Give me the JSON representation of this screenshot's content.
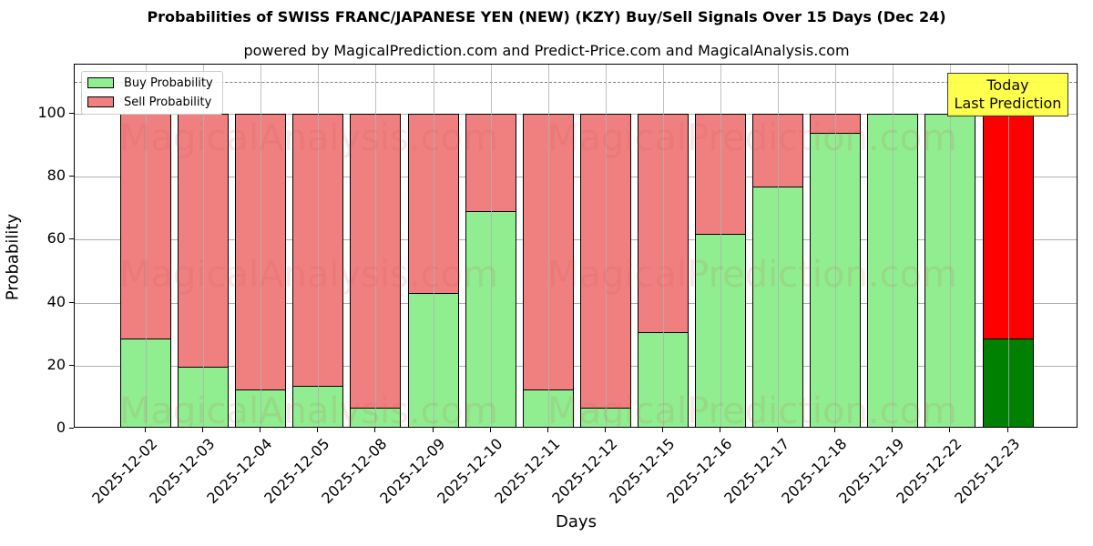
{
  "header": {
    "title": "Probabilities of SWISS FRANC/JAPANESE YEN (NEW) (KZY) Buy/Sell Signals Over 15 Days (Dec 24)",
    "subtitle": "powered by MagicalPrediction.com and Predict-Price.com and MagicalAnalysis.com"
  },
  "legend": {
    "buy_label": "Buy Probability",
    "sell_label": "Sell Probability"
  },
  "annotation": {
    "line1": "Today",
    "line2": "Last Prediction"
  },
  "watermarks": [
    "MagicalAnalysis.com",
    "MagicalPrediction.com"
  ],
  "colors": {
    "buy": "#90ee90",
    "sell": "#f08080",
    "buy_today": "#008000",
    "sell_today": "#ff0000",
    "annotation_bg": "#ffff44"
  },
  "chart_data": {
    "type": "bar",
    "stacked": true,
    "title": "Probabilities of SWISS FRANC/JAPANESE YEN (NEW) (KZY) Buy/Sell Signals Over 15 Days (Dec 24)",
    "subtitle": "powered by MagicalPrediction.com and Predict-Price.com and MagicalAnalysis.com",
    "xlabel": "Days",
    "ylabel": "Probability",
    "ylim": [
      0,
      115
    ],
    "yticks": [
      0,
      20,
      40,
      60,
      80,
      100
    ],
    "reference_line": 110,
    "grid": true,
    "legend_position": "upper left",
    "categories": [
      "2025-12-02",
      "2025-12-03",
      "2025-12-04",
      "2025-12-05",
      "2025-12-08",
      "2025-12-09",
      "2025-12-10",
      "2025-12-11",
      "2025-12-12",
      "2025-12-15",
      "2025-12-16",
      "2025-12-17",
      "2025-12-18",
      "2025-12-19",
      "2025-12-22",
      "2025-12-23"
    ],
    "series": [
      {
        "name": "Buy Probability",
        "values": [
          28.6,
          19.7,
          12.4,
          13.6,
          6.6,
          43.0,
          69.0,
          12.4,
          6.6,
          30.6,
          61.8,
          76.9,
          93.9,
          100,
          100,
          28.6
        ]
      },
      {
        "name": "Sell Probability",
        "values": [
          71.4,
          80.3,
          87.6,
          86.4,
          93.4,
          57.0,
          31.0,
          87.6,
          93.4,
          69.4,
          38.2,
          23.1,
          6.1,
          0,
          0,
          71.4
        ]
      }
    ],
    "annotations": [
      {
        "text": "Today\nLast Prediction",
        "x": "2025-12-23"
      }
    ]
  }
}
